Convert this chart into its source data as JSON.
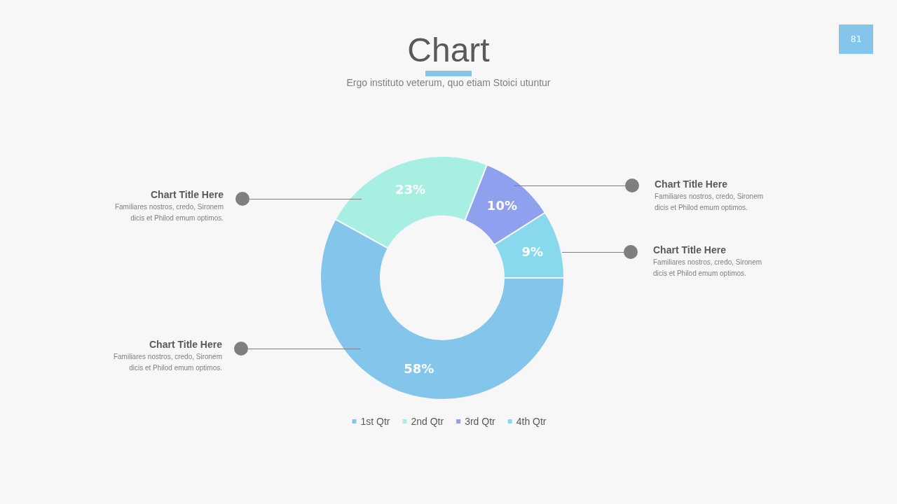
{
  "chart_data": {
    "type": "donut",
    "title": "Chart",
    "subtitle": "Ergo instituto veterum, quo etiam Stoici utuntur",
    "categories": [
      "1st Qtr",
      "2nd Qtr",
      "3rd Qtr",
      "4th Qtr"
    ],
    "values": [
      58,
      23,
      10,
      9
    ],
    "colors": [
      "#83c5eb",
      "#a7efe3",
      "#8fa0ef",
      "#88d9ee"
    ],
    "value_labels": [
      "58%",
      "23%",
      "10%",
      "9%"
    ],
    "legend": "bottom",
    "annotations": [
      "81",
      "Chart Title Here",
      "Familiares nostros, credo, Sironem dicis et Philod emum optimos.",
      "Chart Title Here",
      "Familiares nostros, credo, Sironem dicis et Philod emum optimos.",
      "Chart Title Here",
      "Familiares nostros, credo, Sironem dicis et Philod emum optimos.",
      "Chart Title Here",
      "Familiares nostros, credo, Sironem dicis et Philod emum optimos."
    ]
  }
}
